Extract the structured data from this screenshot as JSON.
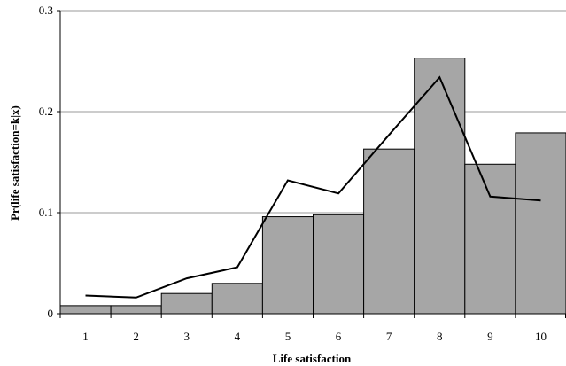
{
  "chart_data": {
    "type": "bar",
    "xlabel": "Life satisfaction",
    "ylabel": "Pr(life satisfaction=k|x)",
    "categories": [
      "1",
      "2",
      "3",
      "4",
      "5",
      "6",
      "7",
      "8",
      "9",
      "10"
    ],
    "series": [
      {
        "type": "bar",
        "values": [
          0.008,
          0.008,
          0.02,
          0.03,
          0.096,
          0.098,
          0.163,
          0.253,
          0.148,
          0.179
        ]
      },
      {
        "type": "line",
        "values": [
          0.018,
          0.016,
          0.035,
          0.046,
          0.132,
          0.119,
          0.177,
          0.234,
          0.116,
          0.112
        ]
      }
    ],
    "ylim": [
      0,
      0.3
    ],
    "yticks": [
      "0",
      "0.1",
      "0.2",
      "0.3"
    ],
    "grid": "horizontal",
    "colors": {
      "bar_fill": "#a6a6a6",
      "bar_stroke": "#000000",
      "line": "#000000",
      "grid": "#999999"
    }
  }
}
